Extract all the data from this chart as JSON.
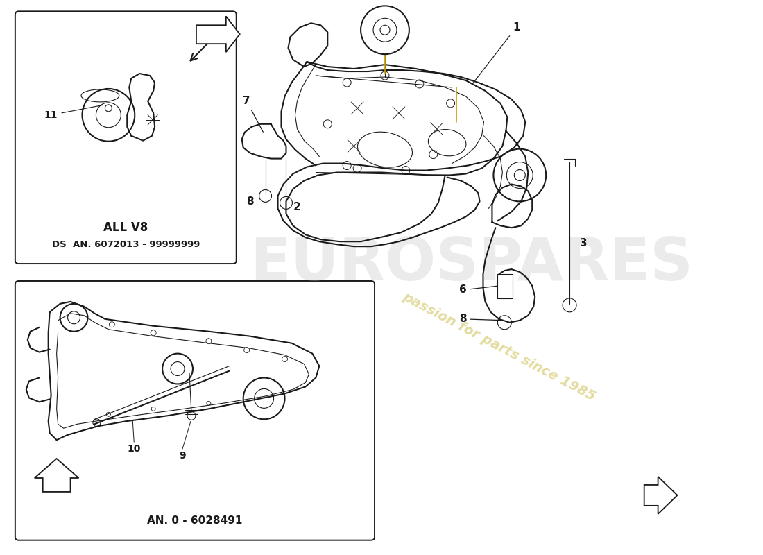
{
  "bg_color": "#ffffff",
  "line_color": "#1a1a1a",
  "watermark_text": "passion for parts since 1985",
  "watermark_color": "#c8b840",
  "watermark_alpha": 0.5,
  "brand_text": "EUROSPARES",
  "brand_color": "#c0c0c0",
  "brand_alpha": 0.3,
  "box1_text_line1": "ALL V8",
  "box1_text_line2": "DS  AN. 6072013 - 99999999",
  "box2_text": "AN. 0 - 6028491",
  "font_size_label": 10,
  "font_size_box_title": 11,
  "font_size_box_sub": 9
}
